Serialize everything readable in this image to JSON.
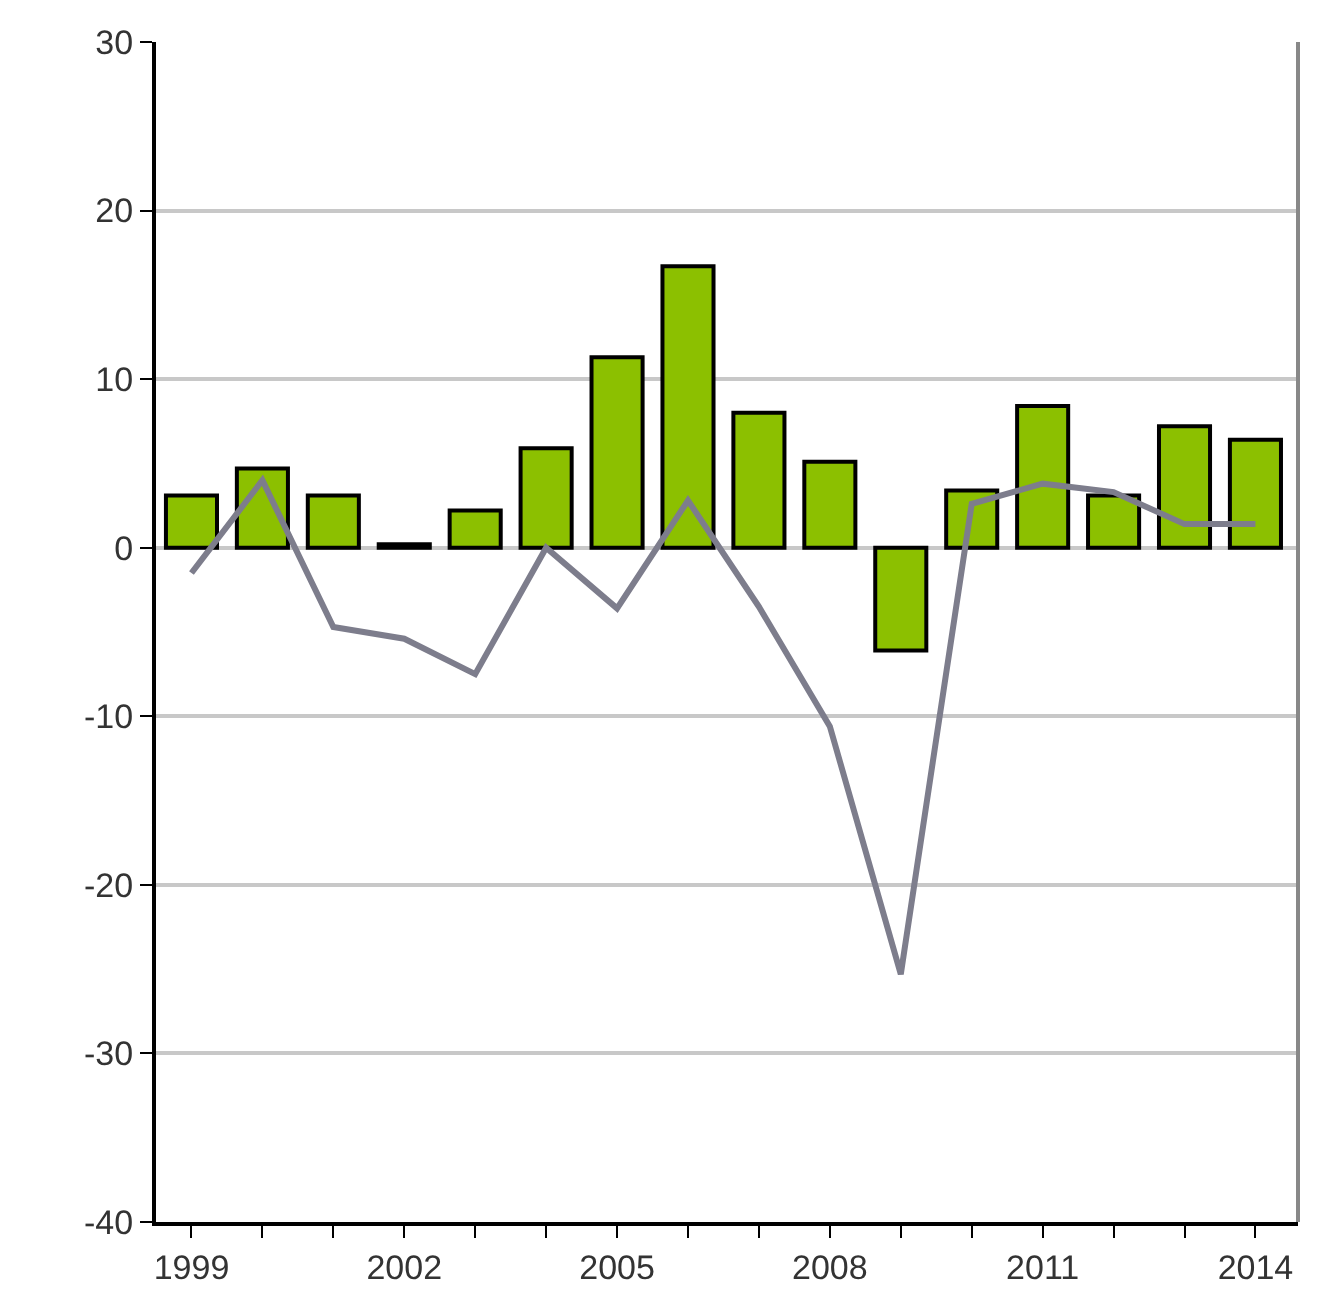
{
  "chart_data": {
    "type": "bar",
    "x": [
      1999,
      2000,
      2001,
      2002,
      2003,
      2004,
      2005,
      2006,
      2007,
      2008,
      2009,
      2010,
      2011,
      2012,
      2013,
      2014
    ],
    "series": [
      {
        "color": "#8cc000",
        "values": [
          3.1,
          4.7,
          3.1,
          0.2,
          2.2,
          5.9,
          11.3,
          16.7,
          8.0,
          5.1,
          -6.1,
          3.4,
          8.4,
          3.1,
          7.2,
          6.4
        ]
      },
      {
        "type": "line",
        "color": "#7d7d8c",
        "values": [
          -1.5,
          4.0,
          -4.7,
          -5.4,
          -7.5,
          0.0,
          -3.6,
          2.8,
          -3.5,
          -10.6,
          -25.3,
          2.6,
          3.8,
          3.3,
          1.4,
          1.4
        ]
      }
    ],
    "xlim": [
      1998.5,
      2014.6
    ],
    "xticks": [
      1999,
      {
        "value": 2000,
        "label": null
      },
      {
        "value": 2001,
        "label": null
      },
      2002,
      {
        "value": 2003,
        "label": null
      },
      {
        "value": 2004,
        "label": null
      },
      2005,
      {
        "value": 2006,
        "label": null
      },
      {
        "value": 2007,
        "label": null
      },
      2008,
      {
        "value": 2009,
        "label": null
      },
      {
        "value": 2010,
        "label": null
      },
      2011,
      {
        "value": 2012,
        "label": null
      },
      {
        "value": 2013,
        "label": null
      },
      2014
    ],
    "ylim": [
      -40,
      30
    ],
    "yticks": [
      -40,
      -30,
      -20,
      -10,
      0,
      10,
      20,
      30
    ],
    "grid": "y",
    "marker": "none",
    "line_style": "solid"
  }
}
